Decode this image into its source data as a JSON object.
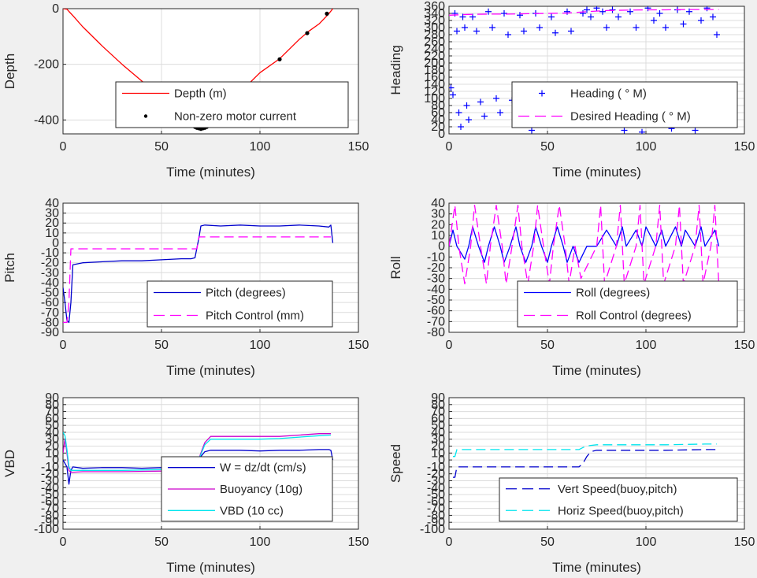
{
  "chart_data": [
    {
      "type": "line",
      "xlabel": "Time (minutes)",
      "ylabel": "Depth",
      "xlim": [
        0,
        150
      ],
      "ylim": [
        -450,
        0
      ],
      "xticks": [
        0,
        50,
        100,
        150
      ],
      "yticks": [
        0,
        -200,
        -400
      ],
      "grid": true,
      "legend": "bottom-right",
      "series": [
        {
          "name": "Depth (m)",
          "color": "#ff0000",
          "style": "solid",
          "x": [
            0,
            2,
            3,
            5,
            10,
            20,
            30,
            40,
            50,
            60,
            65,
            68,
            70,
            72,
            75,
            80,
            90,
            100,
            110,
            120,
            125,
            130,
            135,
            137
          ],
          "y": [
            0,
            -2,
            -10,
            -25,
            -65,
            -135,
            -200,
            -260,
            -320,
            -375,
            -405,
            -420,
            -428,
            -428,
            -405,
            -370,
            -300,
            -230,
            -180,
            -110,
            -80,
            -55,
            -18,
            0
          ]
        },
        {
          "name": "Non-zero motor current",
          "color": "#000000",
          "style": "marker",
          "x": [
            67,
            68,
            69,
            70,
            71,
            72,
            73,
            110,
            124,
            134
          ],
          "y": [
            -425,
            -428,
            -430,
            -432,
            -430,
            -428,
            -425,
            -182,
            -88,
            -18
          ]
        }
      ]
    },
    {
      "type": "scatter",
      "xlabel": "Time (minutes)",
      "ylabel": "Heading",
      "xlim": [
        0,
        150
      ],
      "ylim": [
        0,
        360
      ],
      "xticks": [
        0,
        50,
        100,
        150
      ],
      "yticks": [
        0,
        20,
        40,
        60,
        80,
        100,
        120,
        140,
        160,
        180,
        200,
        220,
        240,
        260,
        280,
        300,
        320,
        340,
        360
      ],
      "grid": true,
      "legend": "bottom-right",
      "series": [
        {
          "name": "Heading (   ° M)",
          "color": "#0000ff",
          "style": "plus",
          "x": [
            1,
            2,
            3,
            4,
            5,
            6,
            7,
            8,
            9,
            10,
            12,
            14,
            16,
            18,
            20,
            22,
            24,
            26,
            28,
            30,
            32,
            34,
            36,
            38,
            40,
            42,
            44,
            46,
            48,
            50,
            52,
            54,
            56,
            58,
            60,
            62,
            64,
            66,
            68,
            70,
            72,
            75,
            78,
            80,
            83,
            86,
            89,
            92,
            95,
            98,
            101,
            104,
            107,
            110,
            113,
            116,
            119,
            122,
            125,
            128,
            131,
            134,
            136
          ],
          "y": [
            130,
            110,
            340,
            290,
            60,
            20,
            330,
            300,
            80,
            40,
            330,
            290,
            90,
            50,
            345,
            300,
            100,
            60,
            340,
            280,
            95,
            40,
            335,
            290,
            85,
            10,
            340,
            300,
            100,
            60,
            330,
            285,
            70,
            30,
            345,
            290,
            95,
            50,
            340,
            350,
            330,
            355,
            345,
            300,
            350,
            330,
            10,
            345,
            300,
            5,
            355,
            320,
            340,
            300,
            15,
            350,
            310,
            345,
            10,
            320,
            355,
            330,
            280
          ]
        },
        {
          "name": "Desired Heading (    ° M)",
          "color": "#ff00ff",
          "style": "dashed",
          "x": [
            0,
            10,
            20,
            30,
            40,
            50,
            60,
            70,
            80,
            90,
            100,
            110,
            120,
            130,
            137
          ],
          "y": [
            335,
            337,
            338,
            338,
            339,
            340,
            341,
            345,
            348,
            349,
            350,
            350,
            351,
            351,
            351
          ]
        }
      ]
    },
    {
      "type": "line",
      "xlabel": "Time (minutes)",
      "ylabel": "Pitch",
      "xlim": [
        0,
        150
      ],
      "ylim": [
        -90,
        40
      ],
      "xticks": [
        0,
        50,
        100,
        150
      ],
      "yticks": [
        -90,
        -80,
        -70,
        -60,
        -50,
        -40,
        -30,
        -20,
        -10,
        0,
        10,
        20,
        30,
        40
      ],
      "grid": true,
      "legend": "bottom-right",
      "series": [
        {
          "name": "Pitch (degrees)",
          "color": "#0000cc",
          "style": "solid",
          "x": [
            0,
            1,
            2,
            3,
            4,
            5,
            10,
            20,
            30,
            40,
            50,
            60,
            65,
            67,
            68,
            69,
            70,
            72,
            80,
            90,
            100,
            110,
            120,
            130,
            135,
            136,
            137
          ],
          "y": [
            -45,
            -60,
            -78,
            -80,
            -60,
            -22,
            -20,
            -19,
            -18,
            -18,
            -17,
            -16,
            -16,
            -15,
            -5,
            5,
            17,
            18,
            17,
            18,
            17,
            17,
            18,
            17,
            16,
            18,
            0
          ]
        },
        {
          "name": "Pitch Control (mm)",
          "color": "#ff00ff",
          "style": "dashed",
          "x": [
            0,
            2,
            3,
            4,
            5,
            68,
            69,
            70,
            136
          ],
          "y": [
            -80,
            -80,
            -60,
            -6,
            -6,
            -6,
            6,
            6,
            6
          ]
        }
      ]
    },
    {
      "type": "line",
      "xlabel": "Time (minutes)",
      "ylabel": "Roll",
      "xlim": [
        0,
        150
      ],
      "ylim": [
        -80,
        40
      ],
      "xticks": [
        0,
        50,
        100,
        150
      ],
      "yticks": [
        -80,
        -70,
        -60,
        -50,
        -40,
        -30,
        -20,
        -10,
        0,
        10,
        20,
        30,
        40
      ],
      "grid": true,
      "legend": "bottom-right",
      "series": [
        {
          "name": "Roll (degrees)",
          "color": "#0000ff",
          "style": "solid",
          "x": [
            0,
            2,
            4,
            8,
            10,
            12,
            15,
            18,
            20,
            23,
            26,
            28,
            31,
            34,
            36,
            39,
            42,
            44,
            47,
            50,
            52,
            55,
            58,
            60,
            63,
            66,
            70,
            75,
            80,
            85,
            88,
            90,
            95,
            98,
            100,
            105,
            108,
            110,
            115,
            118,
            120,
            125,
            128,
            130,
            135,
            137
          ],
          "y": [
            0,
            15,
            0,
            -12,
            0,
            18,
            0,
            -15,
            0,
            18,
            0,
            -15,
            0,
            18,
            0,
            -15,
            0,
            18,
            0,
            -15,
            0,
            18,
            0,
            -15,
            0,
            -15,
            0,
            0,
            15,
            0,
            18,
            0,
            15,
            0,
            18,
            0,
            15,
            0,
            18,
            0,
            15,
            0,
            18,
            0,
            15,
            0
          ]
        },
        {
          "name": "Roll Control (degrees)",
          "color": "#ff00ff",
          "style": "dashed",
          "x": [
            0,
            3,
            5,
            8,
            11,
            13,
            16,
            19,
            21,
            24,
            27,
            29,
            32,
            35,
            37,
            40,
            43,
            45,
            48,
            51,
            53,
            56,
            59,
            61,
            64,
            67,
            75,
            77,
            79,
            85,
            87,
            89,
            95,
            97,
            99,
            105,
            107,
            109,
            115,
            117,
            119,
            125,
            127,
            129,
            133,
            135,
            137
          ],
          "y": [
            0,
            38,
            0,
            -35,
            0,
            38,
            0,
            -35,
            0,
            38,
            0,
            -35,
            0,
            38,
            0,
            -35,
            0,
            38,
            0,
            -35,
            0,
            38,
            0,
            -35,
            0,
            -30,
            0,
            38,
            -35,
            0,
            38,
            -35,
            0,
            38,
            -35,
            0,
            38,
            -35,
            0,
            38,
            -35,
            0,
            38,
            -35,
            0,
            38,
            -35
          ]
        }
      ]
    },
    {
      "type": "line",
      "xlabel": "Time (minutes)",
      "ylabel": "VBD",
      "xlim": [
        0,
        150
      ],
      "ylim": [
        -100,
        90
      ],
      "xticks": [
        0,
        50,
        100,
        150
      ],
      "yticks": [
        -100,
        -90,
        -80,
        -70,
        -60,
        -50,
        -40,
        -30,
        -20,
        -10,
        0,
        10,
        20,
        30,
        40,
        50,
        60,
        70,
        80,
        90
      ],
      "grid": true,
      "legend": "bottom-right",
      "series": [
        {
          "name": "W = dz/dt (cm/s)",
          "color": "#0000cc",
          "style": "solid",
          "x": [
            0,
            2,
            3,
            4,
            5,
            10,
            20,
            30,
            40,
            50,
            60,
            66,
            68,
            70,
            72,
            75,
            80,
            90,
            100,
            110,
            120,
            130,
            135,
            136,
            137
          ],
          "y": [
            0,
            -10,
            -35,
            -15,
            -10,
            -12,
            -11,
            -11,
            -12,
            -11,
            -12,
            -12,
            -5,
            5,
            12,
            14,
            14,
            14,
            13,
            14,
            14,
            15,
            15,
            14,
            0
          ]
        },
        {
          "name": "Buoyancy (10g)",
          "color": "#cc00cc",
          "style": "solid",
          "x": [
            0,
            1,
            2,
            3,
            4,
            10,
            30,
            50,
            60,
            66,
            68,
            70,
            72,
            75,
            90,
            100,
            110,
            120,
            130,
            136
          ],
          "y": [
            10,
            30,
            10,
            -15,
            -18,
            -17,
            -17,
            -16,
            -16,
            -16,
            -6,
            10,
            25,
            34,
            34,
            34,
            34,
            36,
            38,
            38
          ]
        },
        {
          "name": "VBD (10 cc)",
          "color": "#00e5ee",
          "style": "solid",
          "x": [
            0,
            1,
            2,
            3,
            4,
            10,
            30,
            50,
            60,
            66,
            68,
            70,
            72,
            75,
            90,
            100,
            110,
            120,
            130,
            136
          ],
          "y": [
            40,
            35,
            15,
            -10,
            -15,
            -15,
            -15,
            -14,
            -14,
            -14,
            -4,
            8,
            22,
            30,
            30,
            30,
            31,
            33,
            35,
            36
          ]
        }
      ]
    },
    {
      "type": "line",
      "xlabel": "Time (minutes)",
      "ylabel": "Speed",
      "xlim": [
        0,
        150
      ],
      "ylim": [
        -100,
        90
      ],
      "xticks": [
        0,
        50,
        100,
        150
      ],
      "yticks": [
        -100,
        -90,
        -80,
        -70,
        -60,
        -50,
        -40,
        -30,
        -20,
        -10,
        0,
        10,
        20,
        30,
        40,
        50,
        60,
        70,
        80,
        90
      ],
      "grid": true,
      "legend": "bottom-right",
      "series": [
        {
          "name": "Vert Speed(buoy,pitch)",
          "color": "#0000cc",
          "style": "dashed",
          "x": [
            2,
            3,
            4,
            5,
            10,
            30,
            50,
            60,
            66,
            68,
            70,
            72,
            75,
            90,
            110,
            130,
            136
          ],
          "y": [
            -25,
            -25,
            -10,
            -10,
            -10,
            -10,
            -10,
            -10,
            -10,
            -5,
            5,
            12,
            14,
            14,
            14,
            15,
            15
          ]
        },
        {
          "name": "Horiz Speed(buoy,pitch)",
          "color": "#00e5ee",
          "style": "dashed",
          "x": [
            2,
            3,
            4,
            5,
            10,
            30,
            50,
            60,
            66,
            68,
            70,
            72,
            75,
            90,
            110,
            130,
            136
          ],
          "y": [
            5,
            5,
            15,
            15,
            15,
            15,
            15,
            15,
            15,
            18,
            20,
            21,
            22,
            22,
            22,
            23,
            23
          ]
        }
      ]
    }
  ]
}
